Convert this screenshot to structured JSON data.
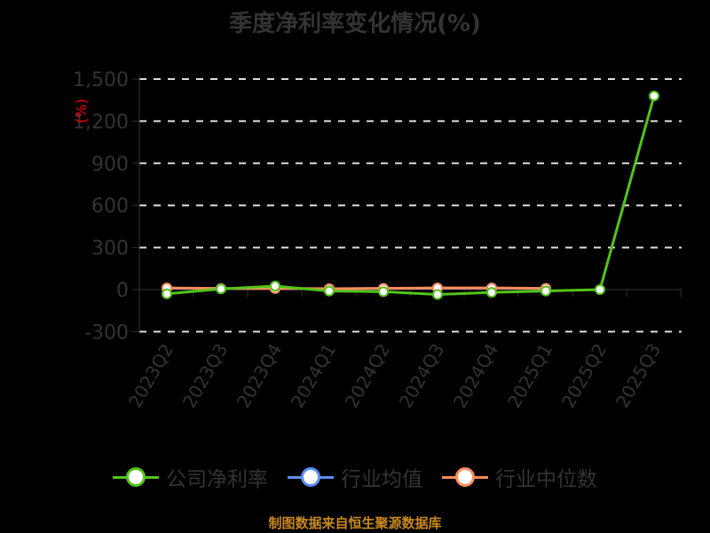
{
  "title": "季度净利率变化情况(%)",
  "footer": "制图数据来自恒生聚源数据库",
  "y_unit_label": "(%)",
  "colors": {
    "company": "#52c41a",
    "industry_avg": "#5b8ff9",
    "industry_median": "#ff8c5a",
    "axis_text": "#333333",
    "unit_label": "#ff0000",
    "footer": "#c8891f",
    "grid": "#dddddd"
  },
  "legend": [
    {
      "label": "公司净利率",
      "color": "#52c41a"
    },
    {
      "label": "行业均值",
      "color": "#5b8ff9"
    },
    {
      "label": "行业中位数",
      "color": "#ff8c5a"
    }
  ],
  "chart_data": {
    "type": "line",
    "title": "季度净利率变化情况(%)",
    "xlabel": "",
    "ylabel": "(%)",
    "ylim": [
      -300,
      1500
    ],
    "yticks": [
      -300,
      0,
      300,
      600,
      900,
      1200,
      1500
    ],
    "ytick_labels": [
      "-300",
      "0",
      "300",
      "600",
      "900",
      "1,200",
      "1,500"
    ],
    "grid": true,
    "legend_position": "bottom",
    "categories": [
      "2023Q2",
      "2023Q3",
      "2023Q4",
      "2024Q1",
      "2024Q2",
      "2024Q3",
      "2024Q4",
      "2025Q1",
      "2025Q2",
      "2025Q3"
    ],
    "series": [
      {
        "name": "公司净利率",
        "values": [
          -30,
          5,
          25,
          -10,
          -15,
          -35,
          -20,
          -10,
          0,
          1380
        ]
      },
      {
        "name": "行业均值",
        "values": [
          10,
          8,
          8,
          6,
          8,
          10,
          10,
          8,
          null,
          null
        ]
      },
      {
        "name": "行业中位数",
        "values": [
          12,
          8,
          8,
          6,
          9,
          12,
          12,
          9,
          null,
          null
        ]
      }
    ],
    "source": "制图数据来自恒生聚源数据库"
  }
}
